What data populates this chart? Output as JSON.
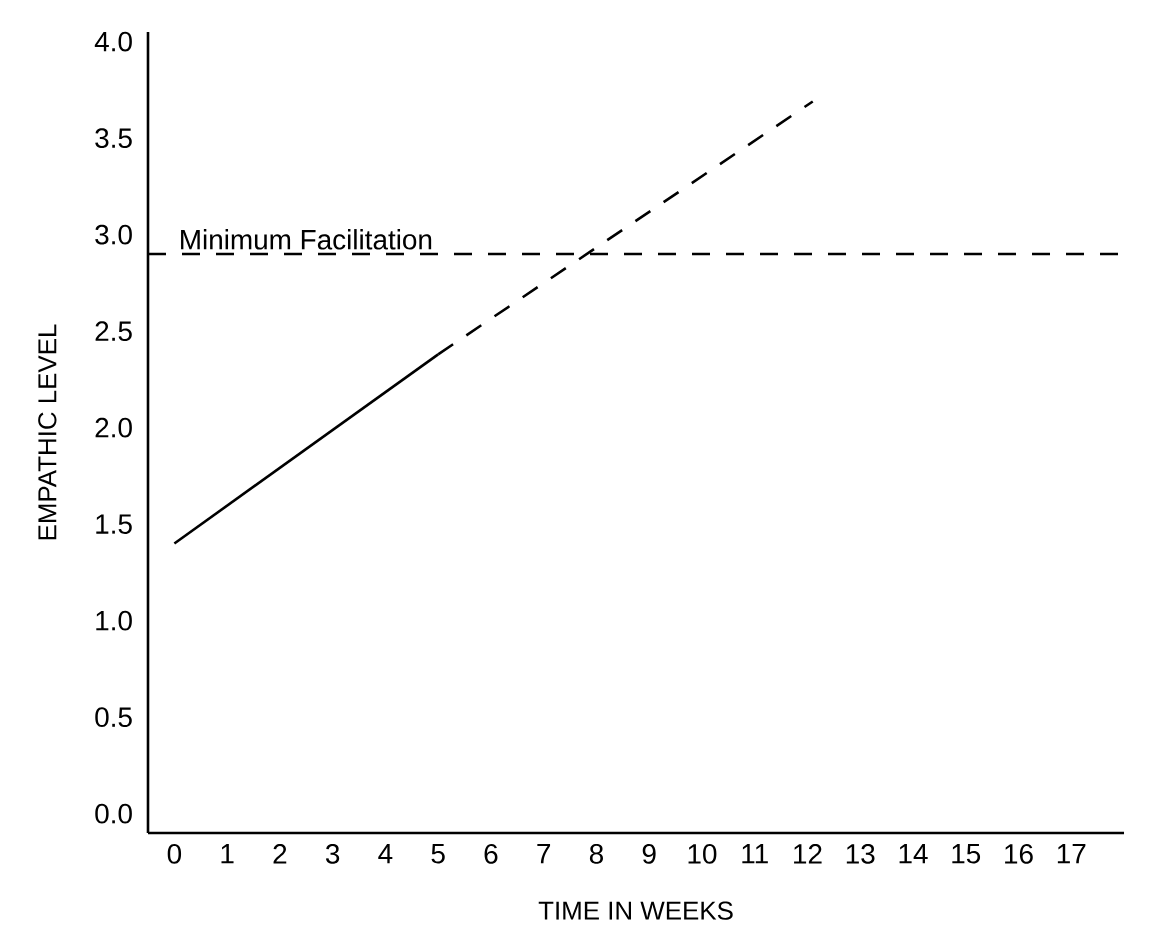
{
  "chart_data": {
    "type": "line",
    "xlabel": "TIME IN WEEKS",
    "ylabel": "EMPATHIC LEVEL",
    "series": [
      {
        "color": "#000000",
        "line_style": "solid",
        "x": [
          0,
          5
        ],
        "values": [
          1.4,
          2.38
        ]
      },
      {
        "color": "#000000",
        "line_style": "dashed",
        "x": [
          5,
          12.1
        ],
        "values": [
          2.38,
          3.69
        ]
      }
    ],
    "xlim": [
      -0.5,
      18
    ],
    "ylim": [
      -0.1,
      4.05
    ],
    "xticks": [
      0,
      1,
      2,
      3,
      4,
      5,
      6,
      7,
      8,
      9,
      10,
      11,
      12,
      13,
      14,
      15,
      16,
      17
    ],
    "yticks": [
      {
        "value": 0,
        "label": "0.0"
      },
      {
        "value": 0.5,
        "label": "0.5"
      },
      {
        "value": 1,
        "label": "1.0"
      },
      {
        "value": 1.5,
        "label": "1.5"
      },
      {
        "value": 2,
        "label": "2.0"
      },
      {
        "value": 2.5,
        "label": "2.5"
      },
      {
        "value": 3,
        "label": "3.0"
      },
      {
        "value": 3.5,
        "label": "3.5"
      },
      {
        "value": 4,
        "label": "4.0"
      }
    ],
    "ref_lines": [
      {
        "axis": "y",
        "value": 2.9,
        "label": "Minimum Facilitation",
        "line_style": "dashed",
        "color": "#000000"
      }
    ],
    "grid": false,
    "marker": "none"
  }
}
